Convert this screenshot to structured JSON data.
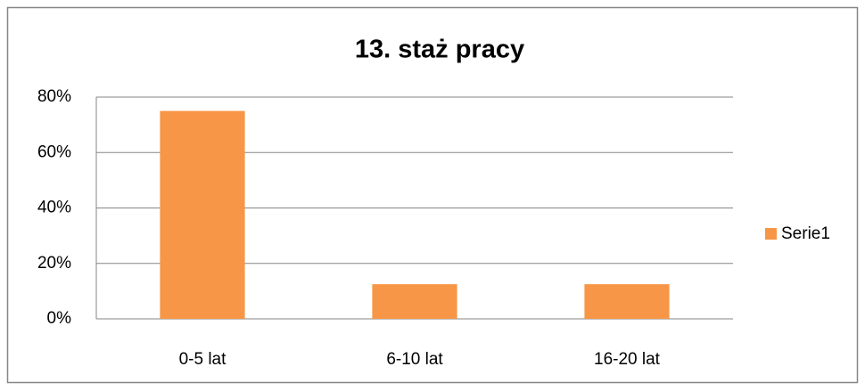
{
  "chart_data": {
    "type": "bar",
    "title": "13. staż pracy",
    "categories": [
      "0-5 lat",
      "6-10 lat",
      "16-20 lat"
    ],
    "series": [
      {
        "name": "Serie1",
        "color": "#f79646",
        "values": [
          75,
          12.5,
          12.5
        ]
      }
    ],
    "ylim": [
      0,
      80
    ],
    "yticks": [
      {
        "value": 0,
        "label": "0%"
      },
      {
        "value": 20,
        "label": "20%"
      },
      {
        "value": 40,
        "label": "40%"
      },
      {
        "value": 60,
        "label": "60%"
      },
      {
        "value": 80,
        "label": "80%"
      }
    ],
    "grid": true,
    "legend": "right"
  }
}
